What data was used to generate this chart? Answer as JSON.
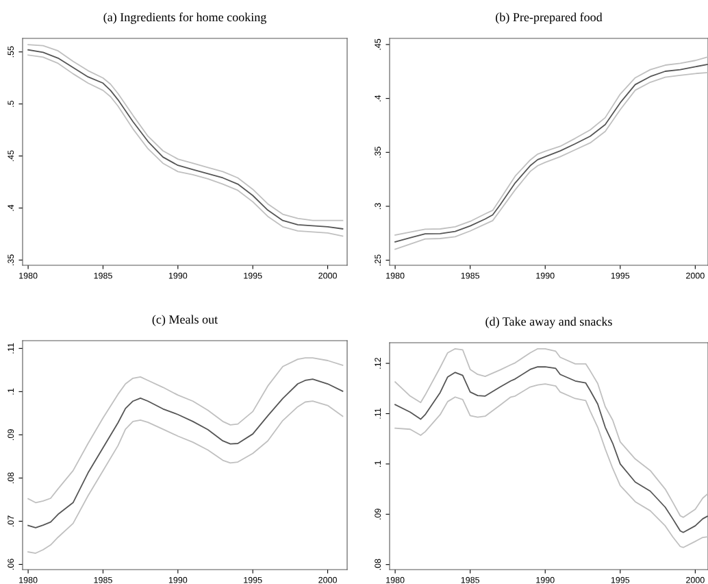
{
  "chart_data": [
    {
      "type": "line",
      "title": "(a) Ingredients for home cooking",
      "xlim": [
        1979.63,
        2001.3
      ],
      "ylim": [
        0.345,
        0.563
      ],
      "xticks": [
        1980,
        1985,
        1990,
        1995,
        2000
      ],
      "yticks": [
        {
          "value": 0.35,
          "label": ".35"
        },
        {
          "value": 0.4,
          "label": ".4"
        },
        {
          "value": 0.45,
          "label": ".45"
        },
        {
          "value": 0.5,
          "label": ".5"
        },
        {
          "value": 0.55,
          "label": ".55"
        }
      ],
      "grid": false,
      "legend": false,
      "x": [
        1980,
        1981,
        1982,
        1983,
        1984,
        1985,
        1985.5,
        1986,
        1987,
        1988,
        1989,
        1990,
        1991,
        1992,
        1993,
        1994,
        1995,
        1996,
        1997,
        1998,
        1999,
        2000,
        2001
      ],
      "series": [
        {
          "color": "#c0c0c0",
          "values": [
            0.557,
            0.556,
            0.551,
            0.541,
            0.532,
            0.525,
            0.519,
            0.51,
            0.489,
            0.469,
            0.455,
            0.447,
            0.443,
            0.439,
            0.435,
            0.429,
            0.418,
            0.404,
            0.394,
            0.39,
            0.388,
            0.388,
            0.388
          ]
        },
        {
          "color": "#c0c0c0",
          "values": [
            0.547,
            0.545,
            0.539,
            0.529,
            0.52,
            0.513,
            0.507,
            0.498,
            0.476,
            0.457,
            0.443,
            0.435,
            0.432,
            0.428,
            0.423,
            0.417,
            0.406,
            0.392,
            0.382,
            0.378,
            0.377,
            0.376,
            0.373
          ]
        },
        {
          "color": "#555555",
          "values": [
            0.552,
            0.5496,
            0.544,
            0.535,
            0.526,
            0.52,
            0.513,
            0.504,
            0.483,
            0.464,
            0.449,
            0.441,
            0.437,
            0.433,
            0.429,
            0.423,
            0.412,
            0.398,
            0.388,
            0.384,
            0.383,
            0.382,
            0.38
          ]
        }
      ]
    },
    {
      "type": "line",
      "title": "(b) Pre-prepared food",
      "xlim": [
        1979.63,
        2000.85
      ],
      "ylim": [
        0.2453,
        0.4557
      ],
      "xticks": [
        1980,
        1985,
        1990,
        1995,
        2000
      ],
      "yticks": [
        {
          "value": 0.25,
          "label": ".25"
        },
        {
          "value": 0.3,
          "label": ".3"
        },
        {
          "value": 0.35,
          "label": ".35"
        },
        {
          "value": 0.4,
          "label": ".4"
        },
        {
          "value": 0.45,
          "label": ".45"
        }
      ],
      "grid": false,
      "legend": false,
      "x": [
        1980,
        1981,
        1982,
        1983,
        1984,
        1985,
        1986,
        1986.5,
        1987,
        1988,
        1989,
        1989.5,
        1990,
        1991,
        1992,
        1993,
        1994,
        1995,
        1996,
        1997,
        1998,
        1999,
        2000,
        2000.8
      ],
      "series": [
        {
          "color": "#c0c0c0",
          "values": [
            0.2733,
            0.2761,
            0.2788,
            0.279,
            0.281,
            0.286,
            0.293,
            0.2962,
            0.3067,
            0.328,
            0.3429,
            0.3484,
            0.351,
            0.3556,
            0.363,
            0.3708,
            0.3822,
            0.404,
            0.4192,
            0.4267,
            0.4309,
            0.4326,
            0.4352,
            0.4383
          ]
        },
        {
          "color": "#c0c0c0",
          "values": [
            0.2602,
            0.2649,
            0.2697,
            0.2701,
            0.2718,
            0.2771,
            0.2835,
            0.2867,
            0.2962,
            0.3153,
            0.3323,
            0.3376,
            0.3407,
            0.346,
            0.3524,
            0.3588,
            0.3694,
            0.3896,
            0.4076,
            0.415,
            0.4197,
            0.4214,
            0.4231,
            0.4239
          ]
        },
        {
          "color": "#555555",
          "values": [
            0.267,
            0.2708,
            0.2744,
            0.2746,
            0.2767,
            0.2818,
            0.2882,
            0.292,
            0.3014,
            0.3217,
            0.3376,
            0.3433,
            0.346,
            0.3514,
            0.358,
            0.365,
            0.3758,
            0.396,
            0.4129,
            0.4203,
            0.4252,
            0.4267,
            0.4294,
            0.4315
          ]
        }
      ]
    },
    {
      "type": "line",
      "title": "(c) Meals out",
      "xlim": [
        1979.63,
        2001.3
      ],
      "ylim": [
        0.0588,
        0.1118
      ],
      "xticks": [
        1980,
        1985,
        1990,
        1995,
        2000
      ],
      "yticks": [
        {
          "value": 0.06,
          "label": ".06"
        },
        {
          "value": 0.07,
          "label": ".07"
        },
        {
          "value": 0.08,
          "label": ".08"
        },
        {
          "value": 0.09,
          "label": ".09"
        },
        {
          "value": 0.1,
          "label": ".1"
        },
        {
          "value": 0.11,
          "label": ".11"
        }
      ],
      "grid": false,
      "legend": false,
      "x": [
        1980,
        1980.5,
        1981,
        1981.5,
        1982,
        1983,
        1984,
        1985,
        1986,
        1986.5,
        1987,
        1987.5,
        1988,
        1989,
        1990,
        1991,
        1992,
        1993,
        1993.5,
        1994,
        1995,
        1996,
        1997,
        1998,
        1998.5,
        1999,
        2000,
        2001
      ],
      "series": [
        {
          "color": "#c0c0c0",
          "values": [
            0.0752,
            0.0743,
            0.0747,
            0.0753,
            0.0775,
            0.0817,
            0.088,
            0.0939,
            0.0994,
            0.1018,
            0.1031,
            0.1034,
            0.1026,
            0.101,
            0.0992,
            0.0978,
            0.0957,
            0.0931,
            0.0923,
            0.0925,
            0.0954,
            0.1013,
            0.1058,
            0.1075,
            0.1078,
            0.1078,
            0.1072,
            0.1061
          ]
        },
        {
          "color": "#c0c0c0",
          "values": [
            0.0629,
            0.0626,
            0.0634,
            0.0645,
            0.0663,
            0.0695,
            0.0759,
            0.0817,
            0.0875,
            0.0913,
            0.0931,
            0.0934,
            0.0929,
            0.0913,
            0.0897,
            0.0883,
            0.0865,
            0.0841,
            0.0835,
            0.0837,
            0.0857,
            0.0886,
            0.0933,
            0.0965,
            0.0976,
            0.0978,
            0.0968,
            0.0943
          ]
        },
        {
          "color": "#555555",
          "values": [
            0.069,
            0.0685,
            0.0691,
            0.0698,
            0.0716,
            0.0743,
            0.0812,
            0.087,
            0.0928,
            0.0961,
            0.0978,
            0.0985,
            0.0978,
            0.096,
            0.0947,
            0.0931,
            0.0912,
            0.0886,
            0.0879,
            0.088,
            0.0902,
            0.0944,
            0.0984,
            0.1018,
            0.1026,
            0.1029,
            0.1018,
            0.1001
          ]
        }
      ]
    },
    {
      "type": "line",
      "title": "(d) Take away and snacks",
      "xlim": [
        1979.63,
        2000.85
      ],
      "ylim": [
        0.079,
        0.1241
      ],
      "xticks": [
        1980,
        1985,
        1990,
        1995,
        2000
      ],
      "yticks": [
        {
          "value": 0.08,
          "label": ".08"
        },
        {
          "value": 0.09,
          "label": ".09"
        },
        {
          "value": 0.1,
          "label": ".1"
        },
        {
          "value": 0.11,
          "label": ".11"
        },
        {
          "value": 0.12,
          "label": ".12"
        }
      ],
      "grid": false,
      "legend": false,
      "x": [
        1980,
        1981,
        1981.7,
        1982,
        1983,
        1983.5,
        1984,
        1984.5,
        1985,
        1985.5,
        1986,
        1987,
        1987.7,
        1988,
        1989,
        1989.5,
        1990,
        1990.7,
        1991,
        1992,
        1992.7,
        1993,
        1993.5,
        1994,
        1994.5,
        1995,
        1996,
        1997,
        1998,
        1998.5,
        1999,
        1999.2,
        2000,
        2000.5,
        2000.8
      ],
      "series": [
        {
          "color": "#c0c0c0",
          "values": [
            0.1163,
            0.1135,
            0.1122,
            0.1137,
            0.1192,
            0.1221,
            0.1229,
            0.1227,
            0.1188,
            0.1178,
            0.1174,
            0.1187,
            0.1197,
            0.1201,
            0.1221,
            0.1229,
            0.1229,
            0.1224,
            0.1212,
            0.1199,
            0.1199,
            0.1185,
            0.116,
            0.1114,
            0.1087,
            0.1044,
            0.101,
            0.0987,
            0.095,
            0.0924,
            0.0897,
            0.0894,
            0.091,
            0.0932,
            0.094
          ]
        },
        {
          "color": "#c0c0c0",
          "values": [
            0.1071,
            0.1069,
            0.1057,
            0.1064,
            0.1098,
            0.1124,
            0.1133,
            0.1128,
            0.1096,
            0.1093,
            0.1095,
            0.1117,
            0.1133,
            0.1135,
            0.1153,
            0.1157,
            0.1159,
            0.1155,
            0.1143,
            0.113,
            0.1126,
            0.1105,
            0.1073,
            0.103,
            0.0991,
            0.0957,
            0.0925,
            0.0907,
            0.0877,
            0.0855,
            0.0836,
            0.0834,
            0.0846,
            0.0854,
            0.0855
          ]
        },
        {
          "color": "#555555",
          "values": [
            0.1118,
            0.1103,
            0.1089,
            0.1098,
            0.1142,
            0.1173,
            0.1182,
            0.1176,
            0.1143,
            0.1136,
            0.1135,
            0.1153,
            0.1165,
            0.1169,
            0.1188,
            0.1193,
            0.1193,
            0.119,
            0.1178,
            0.1165,
            0.1161,
            0.1146,
            0.1119,
            0.1073,
            0.1041,
            0.1,
            0.0964,
            0.0946,
            0.0914,
            0.0891,
            0.0867,
            0.0864,
            0.0877,
            0.0891,
            0.0896
          ]
        }
      ]
    }
  ]
}
